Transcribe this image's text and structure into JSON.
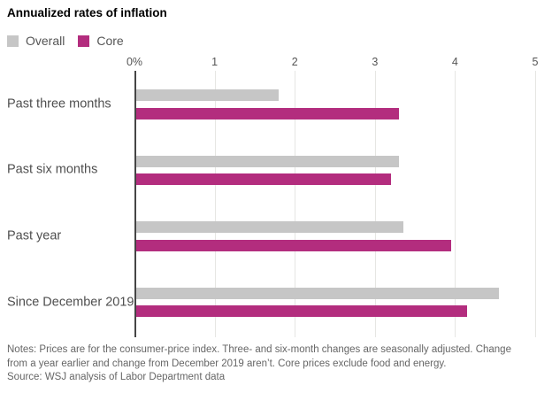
{
  "title": "Annualized rates of inflation",
  "chart_data": {
    "type": "bar",
    "orientation": "horizontal",
    "title": "Annualized rates of inflation",
    "categories": [
      "Past three months",
      "Past six months",
      "Past year",
      "Since December 2019"
    ],
    "series": [
      {
        "name": "Overall",
        "color": "#c6c6c6",
        "values": [
          1.8,
          3.3,
          3.35,
          4.55
        ]
      },
      {
        "name": "Core",
        "color": "#b32d7e",
        "values": [
          3.3,
          3.2,
          3.95,
          4.15
        ]
      }
    ],
    "xlim": [
      0,
      5
    ],
    "x_ticks": [
      "0%",
      "1",
      "2",
      "3",
      "4",
      "5"
    ],
    "grid": true,
    "gridline_color": "#e6e6e3",
    "axis_line_color": "#454545",
    "legend_position": "top-left",
    "unit": "percent"
  },
  "notes_lines": [
    "Notes: Prices are for the consumer-price index. Three- and six-month changes are seasonally adjusted. Change",
    "from a year earlier and change from December 2019 aren’t. Core prices exclude food and energy."
  ],
  "source": "Source: WSJ analysis of Labor Department data"
}
